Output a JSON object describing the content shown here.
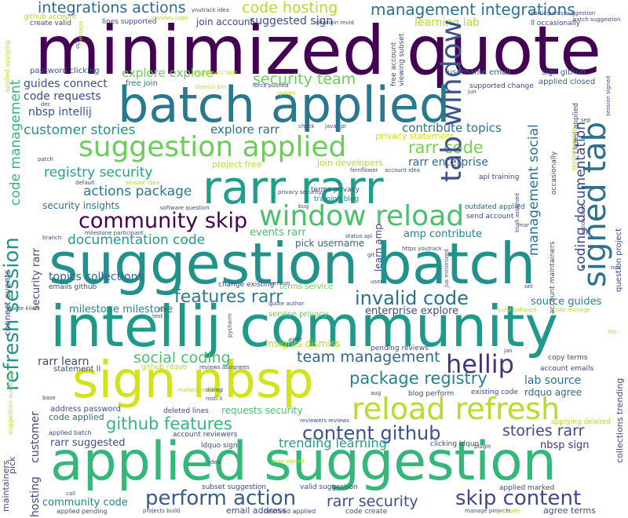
{
  "words": [
    {
      "text": "minimized quote",
      "color": "#440154"
    },
    {
      "text": "batch applied",
      "color": "#2a788e"
    },
    {
      "text": "suggestion batch",
      "color": "#21918c"
    },
    {
      "text": "intellij community",
      "color": "#1f9a8a"
    },
    {
      "text": "applied suggestion",
      "color": "#35b779"
    },
    {
      "text": "sign nbsp",
      "color": "#d2e21b"
    },
    {
      "text": "rarr rarr",
      "color": "#1f9e89"
    },
    {
      "text": "suggestion applied",
      "color": "#6ccd5a"
    },
    {
      "text": "reload refresh",
      "color": "#b5de2b"
    },
    {
      "text": "tab window",
      "color": "#3b528b"
    },
    {
      "text": "signed tab",
      "color": "#2c728e"
    },
    {
      "text": "window reload",
      "color": "#4ac16d"
    },
    {
      "text": "refresh session",
      "color": "#1f958b"
    },
    {
      "text": "community skip",
      "color": "#440154"
    },
    {
      "text": "hellip",
      "color": "#46327e"
    },
    {
      "text": "perform action",
      "color": "#365c8d"
    },
    {
      "text": "skip content",
      "color": "#3e4989"
    },
    {
      "text": "content github",
      "color": "#3b528b"
    },
    {
      "text": "invalid code",
      "color": "#2c728e"
    },
    {
      "text": "features rarr",
      "color": "#277f8e"
    },
    {
      "text": "management integrations",
      "color": "#2c728e"
    },
    {
      "text": "integrations actions",
      "color": "#31688e"
    },
    {
      "text": "code hosting",
      "color": "#b5de2b"
    },
    {
      "text": "github features",
      "color": "#35b779"
    },
    {
      "text": "package registry",
      "color": "#26828e"
    },
    {
      "text": "team management",
      "color": "#31688e"
    },
    {
      "text": "social coding",
      "color": "#4ac16d"
    },
    {
      "text": "stories rarr",
      "color": "#3e4989"
    },
    {
      "text": "rarr security",
      "color": "#3b528b"
    },
    {
      "text": "trending learning",
      "color": "#1f9e89"
    },
    {
      "text": "rarr code",
      "color": "#7ad151"
    },
    {
      "text": "security team",
      "color": "#6ccd5a"
    },
    {
      "text": "documentation code",
      "color": "#1f9e89"
    },
    {
      "text": "actions package",
      "color": "#2a788e"
    },
    {
      "text": "registry security",
      "color": "#20a486"
    },
    {
      "text": "customer stories",
      "color": "#21918c"
    },
    {
      "text": "topics collections",
      "color": "#31688e"
    },
    {
      "text": "coding documentation",
      "color": "#3e4989"
    },
    {
      "text": "management social",
      "color": "#2c728e"
    },
    {
      "text": "rarr enterprise",
      "color": "#31688e"
    },
    {
      "text": "contribute topics",
      "color": "#2c728e"
    },
    {
      "text": "explore rarr",
      "color": "#2c728e"
    },
    {
      "text": "explore explore",
      "color": "#6ccd5a"
    },
    {
      "text": "guides connect",
      "color": "#3b528b"
    },
    {
      "text": "code requests",
      "color": "#3e4989"
    },
    {
      "text": "nbsp intellij",
      "color": "#3b528b"
    },
    {
      "text": "code management",
      "color": "#35b779"
    },
    {
      "text": "security insights",
      "color": "#2a788e"
    },
    {
      "text": "rarr learn",
      "color": "#3e4989"
    },
    {
      "text": "enterprise explore",
      "color": "#3e4989"
    },
    {
      "text": "milestone milestone",
      "color": "#26828e"
    },
    {
      "text": "lab source",
      "color": "#2c728e"
    },
    {
      "text": "source guides",
      "color": "#26828e"
    },
    {
      "text": "amp contribute",
      "color": "#26828e"
    },
    {
      "text": "events rarr",
      "color": "#4ac16d"
    },
    {
      "text": "pick username",
      "color": "#31688e"
    },
    {
      "text": "learning lab",
      "color": "#b5de2b"
    },
    {
      "text": "code applied",
      "color": "#31688e"
    },
    {
      "text": "community code",
      "color": "#26828e"
    },
    {
      "text": "rarr suggested",
      "color": "#3b528b"
    },
    {
      "text": "requests security",
      "color": "#4ac16d"
    },
    {
      "text": "insights dismiss",
      "color": "#b5de2b"
    },
    {
      "text": "rdquo agree",
      "color": "#31688e"
    },
    {
      "text": "nbsp sign",
      "color": "#46327e"
    },
    {
      "text": "agree terms",
      "color": "#3b528b"
    },
    {
      "text": "email address",
      "color": "#3e4989"
    },
    {
      "text": "code create",
      "color": "#3b528b"
    },
    {
      "text": "suggested sign",
      "color": "#3b528b"
    },
    {
      "text": "join account",
      "color": "#3e4989"
    },
    {
      "text": "privacy statement",
      "color": "#d2e21b"
    },
    {
      "text": "join developers",
      "color": "#b5de2b"
    },
    {
      "text": "project free",
      "color": "#b5de2b"
    },
    {
      "text": "address password",
      "color": "#3b528b"
    },
    {
      "text": "password clicking",
      "color": "#3b528b"
    },
    {
      "text": "free join",
      "color": "#2c728e"
    },
    {
      "text": "username email",
      "color": "#31688e"
    },
    {
      "text": "sign github",
      "color": "#3b528b"
    },
    {
      "text": "applied closed",
      "color": "#31688e"
    },
    {
      "text": "outdated applied",
      "color": "#31688e"
    },
    {
      "text": "send account",
      "color": "#3e4989"
    },
    {
      "text": "api training",
      "color": "#3e4989"
    },
    {
      "text": "terms privacy",
      "color": "#3e4989"
    },
    {
      "text": "training blog",
      "color": "#26828e"
    },
    {
      "text": "applying deleted",
      "color": "#b5de2b"
    },
    {
      "text": "account emails",
      "color": "#3e4989"
    },
    {
      "text": "copy terms",
      "color": "#3e4989"
    },
    {
      "text": "pending reviews",
      "color": "#3e4989"
    },
    {
      "text": "blog perform",
      "color": "#3e4989"
    },
    {
      "text": "existing code",
      "color": "#3e4989"
    },
    {
      "text": "statement ll",
      "color": "#3e4989"
    },
    {
      "text": "github rdquo",
      "color": "#b5de2b"
    },
    {
      "text": "account reviewers",
      "color": "#3e4989"
    },
    {
      "text": "ldquo sign",
      "color": "#3e4989"
    },
    {
      "text": "clicking ldquo",
      "color": "#3e4989"
    },
    {
      "text": "applied batch",
      "color": "#3e4989"
    },
    {
      "text": "applied marked",
      "color": "#3e4989"
    },
    {
      "text": "subset suggestion",
      "color": "#3e4989"
    },
    {
      "text": "valid suggestion",
      "color": "#3e4989"
    },
    {
      "text": "deleted lines",
      "color": "#3e4989"
    },
    {
      "text": "emails github",
      "color": "#3e4989"
    },
    {
      "text": "terms service",
      "color": "#6ccd5a"
    },
    {
      "text": "service privacy",
      "color": "#6ccd5a"
    },
    {
      "text": "change existing",
      "color": "#3e4989"
    },
    {
      "text": "applied pending",
      "color": "#3e4989"
    },
    {
      "text": "resolved applied",
      "color": "#3e4989"
    },
    {
      "text": "lines supported",
      "color": "#3e4989"
    },
    {
      "text": "create valid",
      "color": "#3e4989"
    },
    {
      "text": "supported change",
      "color": "#3e4989"
    },
    {
      "text": "github account",
      "color": "#b5de2b"
    },
    {
      "text": "ll occasionally",
      "color": "#3e4989"
    },
    {
      "text": "maintainers",
      "color": "#3e4989"
    },
    {
      "text": "customer",
      "color": "#3e4989"
    },
    {
      "text": "hosting",
      "color": "#3e4989"
    },
    {
      "text": "security rarr",
      "color": "#3e4989"
    },
    {
      "text": "connect events",
      "color": "#3e4989"
    },
    {
      "text": "learn amp",
      "color": "#3e4989"
    },
    {
      "text": "question project",
      "color": "#3e4989"
    },
    {
      "text": "collections trending",
      "color": "#3e4989"
    },
    {
      "text": "account maintainers",
      "color": "#3e4989"
    },
    {
      "text": "pick",
      "color": "#3e4989"
    },
    {
      "text": "suggestion outdated",
      "color": "#b5de2b"
    },
    {
      "text": "applied applying",
      "color": "#b5de2b"
    },
    {
      "text": "free account",
      "color": "#3e4989"
    },
    {
      "text": "viewing subset",
      "color": "#3e4989"
    },
    {
      "text": "closed applied",
      "color": "#3e4989"
    },
    {
      "text": "occasionally",
      "color": "#3e4989"
    },
    {
      "text": "developers host",
      "color": "#b5de2b"
    },
    {
      "text": "batch suggestion",
      "color": "#3e4989"
    },
    {
      "text": "session signed",
      "color": "#3e4989"
    },
    {
      "text": "dismiss join",
      "color": "#b5de2b"
    },
    {
      "text": "force pushed",
      "color": "#3e4989"
    },
    {
      "text": "reviews copy",
      "color": "#b5de2b"
    },
    {
      "text": "gitorigin revid",
      "color": "#3e4989"
    },
    {
      "text": "youtrack idea",
      "color": "#3e4989"
    },
    {
      "text": "participants suggestion",
      "color": "#3e4989"
    },
    {
      "text": "session idea",
      "color": "#b5de2b"
    },
    {
      "text": "privacy security",
      "color": "#3e4989"
    },
    {
      "text": "fernflower",
      "color": "#3e4989"
    },
    {
      "text": "account idea",
      "color": "#3e4989"
    },
    {
      "text": "milestone participant",
      "color": "#3e4989"
    },
    {
      "text": "status api",
      "color": "#3e4989"
    },
    {
      "text": "https youtrack",
      "color": "#3e4989"
    },
    {
      "text": "software question",
      "color": "#3e4989"
    },
    {
      "text": "code manage",
      "color": "#b5de2b"
    },
    {
      "text": "quote author",
      "color": "#3e4989"
    },
    {
      "text": "pycharm",
      "color": "#3e4989"
    },
    {
      "text": "quote kiiah",
      "color": "#3e4989"
    },
    {
      "text": "build software",
      "color": "#b5de2b"
    },
    {
      "text": "jus minimized",
      "color": "#3e4989"
    },
    {
      "text": "reviewers reviews",
      "color": "#3e4989"
    },
    {
      "text": "time signed",
      "color": "#b5de2b"
    },
    {
      "text": "reviews assignees",
      "color": "#3e4989"
    },
    {
      "text": "projects build",
      "color": "#3e4989"
    },
    {
      "text": "manage projects",
      "color": "#3e4989"
    },
    {
      "text": "host code",
      "color": "#b5de2b"
    },
    {
      "text": "kiiah assigned",
      "color": "#3e4989"
    },
    {
      "text": "action time",
      "color": "#3e4989"
    },
    {
      "text": "applied viewing",
      "color": "#b5de2b"
    },
    {
      "text": "marked resolved",
      "color": "#b5de2b"
    },
    {
      "text": "rosti ii",
      "color": "#3e4989"
    },
    {
      "text": "plugin",
      "color": "#3e4989"
    },
    {
      "text": "dialog",
      "color": "#3e4989"
    },
    {
      "text": "error",
      "color": "#3e4989"
    },
    {
      "text": "bug",
      "color": "#3e4989"
    },
    {
      "text": "check",
      "color": "#3e4989"
    },
    {
      "text": "java",
      "color": "#3e4989"
    },
    {
      "text": "update",
      "color": "#b5de2b"
    },
    {
      "text": "default",
      "color": "#3e4989"
    },
    {
      "text": "branch",
      "color": "#3e4989"
    },
    {
      "text": "patch",
      "color": "#3e4989"
    },
    {
      "text": "test",
      "color": "#3e4989"
    },
    {
      "text": "version",
      "color": "#3e4989"
    },
    {
      "text": "user",
      "color": "#3e4989"
    },
    {
      "text": "file",
      "color": "#3e4989"
    },
    {
      "text": "dec",
      "color": "#3e4989"
    },
    {
      "text": "aug",
      "color": "#3e4989"
    },
    {
      "text": "nov",
      "color": "#3e4989"
    },
    {
      "text": "set",
      "color": "#3e4989"
    },
    {
      "text": "sep",
      "color": "#3e4989"
    },
    {
      "text": "jan",
      "color": "#3e4989"
    },
    {
      "text": "oct",
      "color": "#3e4989"
    },
    {
      "text": "feb",
      "color": "#b5de2b"
    },
    {
      "text": "mar",
      "color": "#3e4989"
    },
    {
      "text": "pr",
      "color": "#3e4989"
    },
    {
      "text": "jun",
      "color": "#3e4989"
    },
    {
      "text": "git",
      "color": "#3e4989"
    },
    {
      "text": "idea",
      "color": "#3e4989"
    },
    {
      "text": "call",
      "color": "#3e4989"
    },
    {
      "text": "base",
      "color": "#3e4989"
    },
    {
      "text": "message",
      "color": "#b5de2b"
    },
    {
      "text": "module",
      "color": "#3e4989"
    }
  ]
}
